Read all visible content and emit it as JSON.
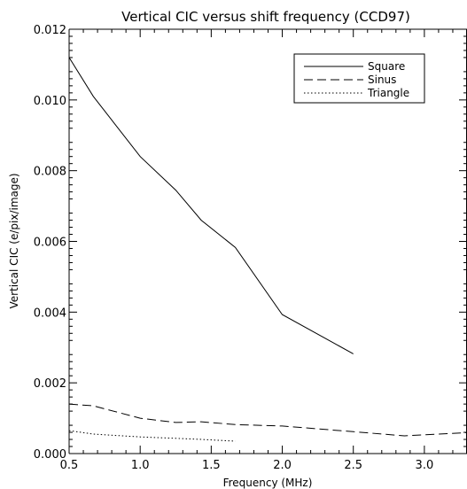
{
  "chart_data": {
    "type": "line",
    "title": "Vertical CIC versus shift frequency (CCD97)",
    "xlabel": "Frequency (MHz)",
    "ylabel": "Vertical CIC (e/pix/image)",
    "xlim": [
      0.5,
      3.3
    ],
    "ylim": [
      0.0,
      0.012
    ],
    "x_ticks": [
      0.5,
      1.0,
      1.5,
      2.0,
      2.5,
      3.0
    ],
    "x_tick_labels": [
      "0.5",
      "1.0",
      "1.5",
      "2.0",
      "2.5",
      "3.0"
    ],
    "y_ticks": [
      0.0,
      0.002,
      0.004,
      0.006,
      0.008,
      0.01,
      0.012
    ],
    "y_tick_labels": [
      "0.000",
      "0.002",
      "0.004",
      "0.006",
      "0.008",
      "0.010",
      "0.012"
    ],
    "grid": false,
    "legend_position": "top-right",
    "series": [
      {
        "name": "Square",
        "dash": "solid",
        "points": [
          [
            0.5,
            0.0112
          ],
          [
            0.67,
            0.0101
          ],
          [
            1.0,
            0.0084
          ],
          [
            1.25,
            0.00745
          ],
          [
            1.43,
            0.0066
          ],
          [
            1.67,
            0.00583
          ],
          [
            2.0,
            0.00393
          ],
          [
            2.5,
            0.00282
          ]
        ]
      },
      {
        "name": "Sinus",
        "dash": "dashed",
        "points": [
          [
            0.5,
            0.0014
          ],
          [
            0.67,
            0.00135
          ],
          [
            1.0,
            0.001
          ],
          [
            1.25,
            0.00088
          ],
          [
            1.43,
            0.0009
          ],
          [
            1.67,
            0.00082
          ],
          [
            2.0,
            0.00078
          ],
          [
            2.5,
            0.00062
          ],
          [
            2.86,
            0.0005
          ],
          [
            3.33,
            0.0006
          ]
        ]
      },
      {
        "name": "Triangle",
        "dash": "dotted",
        "points": [
          [
            0.5,
            0.00065
          ],
          [
            0.67,
            0.00055
          ],
          [
            1.0,
            0.00047
          ],
          [
            1.25,
            0.00043
          ],
          [
            1.43,
            0.0004
          ],
          [
            1.67,
            0.00035
          ]
        ]
      }
    ]
  }
}
